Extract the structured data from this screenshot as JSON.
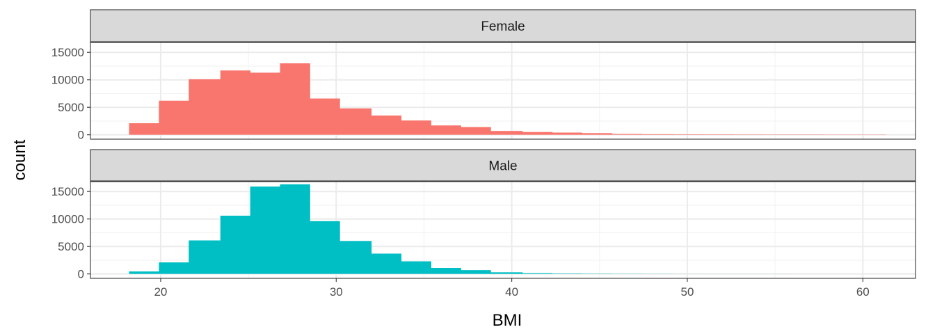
{
  "chart_data": {
    "type": "bar",
    "chart_subtype": "faceted-histogram",
    "xlabel": "BMI",
    "ylabel": "count",
    "xlim": [
      16,
      63
    ],
    "ylim": [
      -800,
      16800
    ],
    "x_ticks": [
      20,
      30,
      40,
      50,
      60
    ],
    "y_ticks": [
      0,
      5000,
      10000,
      15000
    ],
    "grid": true,
    "bin_edges": [
      18.2,
      19.9,
      21.6,
      23.4,
      25.1,
      26.8,
      28.5,
      30.2,
      32.0,
      33.7,
      35.4,
      37.1,
      38.8,
      40.6,
      42.3,
      44.0,
      45.7,
      47.4,
      49.2,
      50.9,
      52.6,
      54.3,
      56.0,
      57.8,
      59.5,
      61.3
    ],
    "series": [
      {
        "name": "Female",
        "color": "#F8766D",
        "values": [
          2100,
          6200,
          10100,
          11700,
          11300,
          13000,
          6600,
          4800,
          3500,
          2600,
          1700,
          1400,
          700,
          500,
          400,
          300,
          150,
          100,
          80,
          70,
          60,
          50,
          50,
          40,
          40
        ]
      },
      {
        "name": "Male",
        "color": "#00BFC4",
        "values": [
          450,
          2100,
          6100,
          10600,
          15900,
          16300,
          9600,
          6000,
          3700,
          2300,
          1100,
          700,
          300,
          150,
          80,
          50,
          30,
          20,
          10,
          5,
          5,
          5,
          0,
          0,
          0
        ]
      }
    ]
  }
}
